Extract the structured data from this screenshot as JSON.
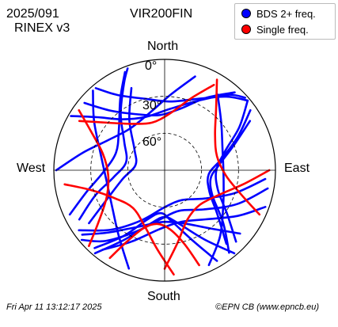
{
  "header": {
    "date_label": "2025/091",
    "format_label": "RINEX v3",
    "station_label": "VIR200FIN"
  },
  "footer": {
    "timestamp": "Fri Apr 11 13:12:17 2025",
    "credit": "©EPN CB (www.epncb.eu)"
  },
  "chart_data": {
    "type": "polar skyplot",
    "title": "VIR200FIN",
    "direction_labels": {
      "north": "North",
      "south": "South",
      "east": "East",
      "west": "West"
    },
    "elevation_ticks": [
      "0°",
      "30°",
      "60°"
    ],
    "elevation_rings": [
      30,
      60
    ],
    "grid": true,
    "legend_position": "top-right",
    "legend": [
      {
        "name": "BDS 2+ freq.",
        "color": "#0000ff"
      },
      {
        "name": "Single freq.",
        "color": "#ff0000"
      }
    ],
    "colors": {
      "dual": "#0000ff",
      "single": "#ff0000"
    },
    "tracks": [
      {
        "signal": "dual",
        "points": [
          [
            100,
            5
          ],
          [
            115,
            25
          ],
          [
            135,
            45
          ],
          [
            160,
            55
          ],
          [
            185,
            50
          ],
          [
            205,
            35
          ],
          [
            220,
            15
          ],
          [
            230,
            2
          ]
        ]
      },
      {
        "signal": "dual",
        "points": [
          [
            95,
            8
          ],
          [
            108,
            30
          ],
          [
            125,
            50
          ],
          [
            150,
            62
          ],
          [
            180,
            60
          ],
          [
            205,
            45
          ],
          [
            222,
            25
          ],
          [
            235,
            5
          ]
        ]
      },
      {
        "signal": "dual",
        "points": [
          [
            110,
            3
          ],
          [
            122,
            20
          ],
          [
            140,
            38
          ],
          [
            162,
            46
          ],
          [
            185,
            42
          ],
          [
            205,
            26
          ],
          [
            218,
            8
          ]
        ]
      },
      {
        "signal": "dual",
        "points": [
          [
            240,
            10
          ],
          [
            250,
            30
          ],
          [
            262,
            48
          ],
          [
            282,
            58
          ],
          [
            305,
            50
          ],
          [
            322,
            32
          ],
          [
            335,
            12
          ],
          [
            340,
            2
          ]
        ]
      },
      {
        "signal": "dual",
        "points": [
          [
            245,
            5
          ],
          [
            255,
            25
          ],
          [
            268,
            40
          ],
          [
            290,
            48
          ],
          [
            312,
            40
          ],
          [
            328,
            22
          ],
          [
            338,
            4
          ]
        ]
      },
      {
        "signal": "dual",
        "points": [
          [
            235,
            15
          ],
          [
            242,
            35
          ],
          [
            258,
            55
          ],
          [
            280,
            66
          ],
          [
            305,
            60
          ],
          [
            325,
            40
          ],
          [
            338,
            18
          ]
        ]
      },
      {
        "signal": "dual",
        "points": [
          [
            300,
            2
          ],
          [
            308,
            20
          ],
          [
            320,
            36
          ],
          [
            340,
            44
          ],
          [
            5,
            40
          ],
          [
            25,
            28
          ],
          [
            40,
            10
          ],
          [
            48,
            2
          ]
        ]
      },
      {
        "signal": "dual",
        "points": [
          [
            310,
            5
          ],
          [
            318,
            25
          ],
          [
            335,
            40
          ],
          [
            355,
            45
          ],
          [
            15,
            38
          ],
          [
            30,
            22
          ],
          [
            42,
            5
          ]
        ]
      },
      {
        "signal": "dual",
        "points": [
          [
            320,
            3
          ],
          [
            328,
            18
          ],
          [
            345,
            30
          ],
          [
            5,
            34
          ],
          [
            25,
            26
          ],
          [
            40,
            12
          ],
          [
            50,
            2
          ]
        ]
      },
      {
        "signal": "dual",
        "points": [
          [
            50,
            2
          ],
          [
            60,
            20
          ],
          [
            72,
            38
          ],
          [
            90,
            48
          ],
          [
            110,
            44
          ],
          [
            125,
            28
          ],
          [
            135,
            8
          ]
        ]
      },
      {
        "signal": "dual",
        "points": [
          [
            55,
            5
          ],
          [
            65,
            24
          ],
          [
            78,
            42
          ],
          [
            95,
            54
          ],
          [
            115,
            50
          ],
          [
            130,
            34
          ],
          [
            140,
            12
          ]
        ]
      },
      {
        "signal": "dual",
        "points": [
          [
            60,
            10
          ],
          [
            70,
            30
          ],
          [
            85,
            46
          ],
          [
            100,
            52
          ],
          [
            118,
            46
          ],
          [
            132,
            26
          ],
          [
            142,
            5
          ]
        ]
      },
      {
        "signal": "dual",
        "points": [
          [
            140,
            2
          ],
          [
            150,
            25
          ],
          [
            165,
            45
          ],
          [
            180,
            52
          ],
          [
            195,
            45
          ],
          [
            210,
            25
          ],
          [
            220,
            2
          ]
        ]
      },
      {
        "signal": "dual",
        "points": [
          [
            150,
            5
          ],
          [
            158,
            28
          ],
          [
            172,
            48
          ],
          [
            185,
            55
          ],
          [
            200,
            47
          ],
          [
            212,
            27
          ],
          [
            222,
            5
          ]
        ]
      },
      {
        "signal": "dual",
        "points": [
          [
            35,
            15
          ],
          [
            50,
            30
          ],
          [
            70,
            40
          ],
          [
            95,
            42
          ],
          [
            120,
            35
          ],
          [
            140,
            20
          ],
          [
            155,
            5
          ]
        ]
      },
      {
        "signal": "dual",
        "points": [
          [
            200,
            5
          ],
          [
            215,
            25
          ],
          [
            235,
            38
          ],
          [
            260,
            42
          ],
          [
            285,
            36
          ],
          [
            305,
            20
          ],
          [
            318,
            3
          ]
        ]
      },
      {
        "signal": "dual",
        "points": [
          [
            270,
            2
          ],
          [
            282,
            22
          ],
          [
            298,
            38
          ],
          [
            320,
            46
          ],
          [
            345,
            42
          ],
          [
            5,
            28
          ],
          [
            18,
            10
          ]
        ]
      },
      {
        "signal": "dual",
        "points": [
          [
            130,
            10
          ],
          [
            142,
            30
          ],
          [
            160,
            44
          ],
          [
            182,
            48
          ],
          [
            204,
            40
          ],
          [
            222,
            22
          ],
          [
            232,
            5
          ]
        ]
      },
      {
        "signal": "single",
        "points": [
          [
            90,
            5
          ],
          [
            100,
            25
          ],
          [
            115,
            42
          ],
          [
            135,
            50
          ],
          [
            155,
            46
          ],
          [
            170,
            30
          ],
          [
            180,
            10
          ]
        ]
      },
      {
        "signal": "single",
        "points": [
          [
            175,
            5
          ],
          [
            185,
            25
          ],
          [
            200,
            42
          ],
          [
            220,
            50
          ],
          [
            240,
            44
          ],
          [
            255,
            28
          ],
          [
            262,
            8
          ]
        ]
      },
      {
        "signal": "single",
        "points": [
          [
            300,
            10
          ],
          [
            310,
            30
          ],
          [
            325,
            44
          ],
          [
            345,
            50
          ],
          [
            5,
            44
          ],
          [
            20,
            28
          ],
          [
            30,
            10
          ]
        ]
      },
      {
        "signal": "single",
        "points": [
          [
            30,
            5
          ],
          [
            40,
            25
          ],
          [
            55,
            40
          ],
          [
            75,
            46
          ],
          [
            95,
            40
          ],
          [
            108,
            24
          ],
          [
            115,
            5
          ]
        ]
      },
      {
        "signal": "single",
        "points": [
          [
            225,
            3
          ],
          [
            232,
            22
          ],
          [
            245,
            38
          ],
          [
            265,
            44
          ],
          [
            285,
            38
          ],
          [
            298,
            22
          ],
          [
            305,
            5
          ]
        ]
      },
      {
        "signal": "single",
        "points": [
          [
            160,
            8
          ],
          [
            165,
            28
          ],
          [
            175,
            42
          ],
          [
            188,
            46
          ],
          [
            200,
            40
          ],
          [
            208,
            24
          ],
          [
            212,
            6
          ]
        ]
      }
    ]
  }
}
